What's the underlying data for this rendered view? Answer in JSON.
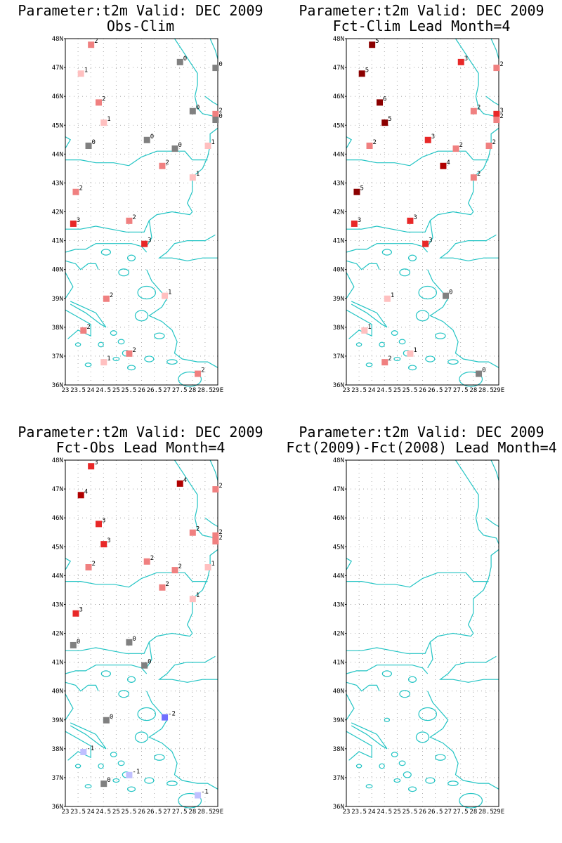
{
  "colors": {
    "coast": "#22c4c4",
    "grid": "#9a9a9a",
    "0": "#808080",
    "1": "#ffc0c0",
    "2": "#f08080",
    "3": "#e82828",
    "4": "#b00000",
    "5": "#8b0000",
    "6": "#8b0000",
    "-1": "#c0c0ff",
    "-2": "#7070ff"
  },
  "axes": {
    "y_labels": [
      "48N",
      "47N",
      "46N",
      "45N",
      "44N",
      "43N",
      "42N",
      "41N",
      "40N",
      "39N",
      "38N",
      "37N",
      "36N"
    ],
    "x_labels": [
      "23",
      "23.5",
      "24",
      "24.5",
      "25",
      "25.5",
      "26",
      "26.5",
      "27",
      "27.5",
      "28",
      "28.5",
      "29E"
    ],
    "xlim": [
      23,
      29
    ],
    "ylim": [
      36,
      48
    ]
  },
  "panels": [
    {
      "title1": "Parameter:t2m Valid: DEC 2009",
      "title2": "Obs-Clim",
      "stations": [
        {
          "lon": 24.0,
          "lat": 47.8,
          "v": 2
        },
        {
          "lon": 23.6,
          "lat": 46.8,
          "v": 1
        },
        {
          "lon": 27.5,
          "lat": 47.2,
          "v": 0
        },
        {
          "lon": 28.9,
          "lat": 47.0,
          "v": 0
        },
        {
          "lon": 24.3,
          "lat": 45.8,
          "v": 2
        },
        {
          "lon": 24.5,
          "lat": 45.1,
          "v": 1
        },
        {
          "lon": 28.0,
          "lat": 45.5,
          "v": 0
        },
        {
          "lon": 28.9,
          "lat": 45.4,
          "v": 2
        },
        {
          "lon": 28.9,
          "lat": 45.2,
          "v": 0
        },
        {
          "lon": 23.9,
          "lat": 44.3,
          "v": 0
        },
        {
          "lon": 26.2,
          "lat": 44.5,
          "v": 0
        },
        {
          "lon": 27.3,
          "lat": 44.2,
          "v": 0
        },
        {
          "lon": 28.6,
          "lat": 44.3,
          "v": 1
        },
        {
          "lon": 26.8,
          "lat": 43.6,
          "v": 2
        },
        {
          "lon": 28.0,
          "lat": 43.2,
          "v": 1
        },
        {
          "lon": 23.4,
          "lat": 42.7,
          "v": 2
        },
        {
          "lon": 23.3,
          "lat": 41.6,
          "v": 3
        },
        {
          "lon": 25.5,
          "lat": 41.7,
          "v": 2
        },
        {
          "lon": 26.1,
          "lat": 40.9,
          "v": 3
        },
        {
          "lon": 24.6,
          "lat": 39.0,
          "v": 2
        },
        {
          "lon": 26.9,
          "lat": 39.1,
          "v": 1
        },
        {
          "lon": 23.7,
          "lat": 37.9,
          "v": 2
        },
        {
          "lon": 25.5,
          "lat": 37.1,
          "v": 2
        },
        {
          "lon": 24.5,
          "lat": 36.8,
          "v": 1
        },
        {
          "lon": 28.2,
          "lat": 36.4,
          "v": 2
        }
      ]
    },
    {
      "title1": "Parameter:t2m Valid: DEC 2009",
      "title2": "Fct-Clim Lead Month=4",
      "stations": [
        {
          "lon": 24.0,
          "lat": 47.8,
          "v": 5
        },
        {
          "lon": 23.6,
          "lat": 46.8,
          "v": 5
        },
        {
          "lon": 27.5,
          "lat": 47.2,
          "v": 3
        },
        {
          "lon": 28.9,
          "lat": 47.0,
          "v": 2
        },
        {
          "lon": 24.3,
          "lat": 45.8,
          "v": 6
        },
        {
          "lon": 24.5,
          "lat": 45.1,
          "v": 5
        },
        {
          "lon": 28.0,
          "lat": 45.5,
          "v": 2
        },
        {
          "lon": 28.9,
          "lat": 45.4,
          "v": 3
        },
        {
          "lon": 28.9,
          "lat": 45.2,
          "v": 2
        },
        {
          "lon": 23.9,
          "lat": 44.3,
          "v": 2
        },
        {
          "lon": 26.2,
          "lat": 44.5,
          "v": 3
        },
        {
          "lon": 27.3,
          "lat": 44.2,
          "v": 2
        },
        {
          "lon": 28.6,
          "lat": 44.3,
          "v": 2
        },
        {
          "lon": 26.8,
          "lat": 43.6,
          "v": 4
        },
        {
          "lon": 28.0,
          "lat": 43.2,
          "v": 2
        },
        {
          "lon": 23.4,
          "lat": 42.7,
          "v": 5
        },
        {
          "lon": 23.3,
          "lat": 41.6,
          "v": 3
        },
        {
          "lon": 25.5,
          "lat": 41.7,
          "v": 3
        },
        {
          "lon": 26.1,
          "lat": 40.9,
          "v": 3
        },
        {
          "lon": 24.6,
          "lat": 39.0,
          "v": 1
        },
        {
          "lon": 26.9,
          "lat": 39.1,
          "v": 0
        },
        {
          "lon": 23.7,
          "lat": 37.9,
          "v": 1
        },
        {
          "lon": 25.5,
          "lat": 37.1,
          "v": 1
        },
        {
          "lon": 24.5,
          "lat": 36.8,
          "v": 2
        },
        {
          "lon": 28.2,
          "lat": 36.4,
          "v": 0
        }
      ]
    },
    {
      "title1": "Parameter:t2m Valid: DEC 2009",
      "title2": "Fct-Obs Lead Month=4",
      "stations": [
        {
          "lon": 24.0,
          "lat": 47.8,
          "v": 3
        },
        {
          "lon": 23.6,
          "lat": 46.8,
          "v": 4
        },
        {
          "lon": 27.5,
          "lat": 47.2,
          "v": 4
        },
        {
          "lon": 28.9,
          "lat": 47.0,
          "v": 2
        },
        {
          "lon": 24.3,
          "lat": 45.8,
          "v": 3
        },
        {
          "lon": 24.5,
          "lat": 45.1,
          "v": 3
        },
        {
          "lon": 28.0,
          "lat": 45.5,
          "v": 2
        },
        {
          "lon": 28.9,
          "lat": 45.4,
          "v": 2
        },
        {
          "lon": 28.9,
          "lat": 45.2,
          "v": 2
        },
        {
          "lon": 23.9,
          "lat": 44.3,
          "v": 2
        },
        {
          "lon": 26.2,
          "lat": 44.5,
          "v": 2
        },
        {
          "lon": 27.3,
          "lat": 44.2,
          "v": 2
        },
        {
          "lon": 28.6,
          "lat": 44.3,
          "v": 1
        },
        {
          "lon": 26.8,
          "lat": 43.6,
          "v": 2
        },
        {
          "lon": 28.0,
          "lat": 43.2,
          "v": 1
        },
        {
          "lon": 23.4,
          "lat": 42.7,
          "v": 3
        },
        {
          "lon": 23.3,
          "lat": 41.6,
          "v": 0
        },
        {
          "lon": 25.5,
          "lat": 41.7,
          "v": 0
        },
        {
          "lon": 26.1,
          "lat": 40.9,
          "v": 0
        },
        {
          "lon": 24.6,
          "lat": 39.0,
          "v": 0
        },
        {
          "lon": 26.9,
          "lat": 39.1,
          "v": -2
        },
        {
          "lon": 23.7,
          "lat": 37.9,
          "v": -1
        },
        {
          "lon": 25.5,
          "lat": 37.1,
          "v": -1
        },
        {
          "lon": 24.5,
          "lat": 36.8,
          "v": 0
        },
        {
          "lon": 28.2,
          "lat": 36.4,
          "v": -1
        }
      ]
    },
    {
      "title1": "Parameter:t2m Valid: DEC 2009",
      "title2": "Fct(2009)-Fct(2008) Lead Month=4",
      "stations": []
    }
  ]
}
